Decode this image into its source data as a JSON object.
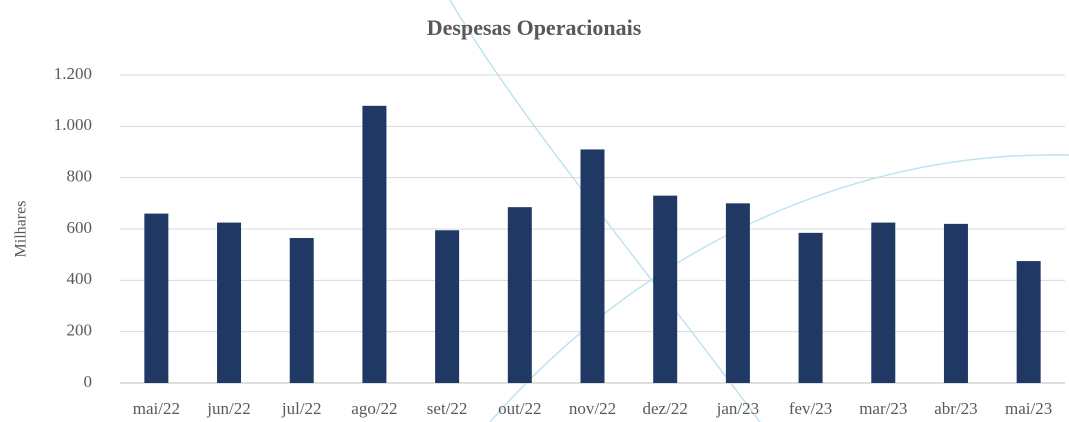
{
  "chart_data": {
    "type": "bar",
    "title": "Despesas Operacionais",
    "y_label": "Milhares",
    "categories": [
      "mai/22",
      "jun/22",
      "jul/22",
      "ago/22",
      "set/22",
      "out/22",
      "nov/22",
      "dez/22",
      "jan/23",
      "fev/23",
      "mar/23",
      "abr/23",
      "mai/23"
    ],
    "values": [
      660,
      625,
      565,
      1080,
      595,
      685,
      910,
      730,
      700,
      585,
      625,
      620,
      475
    ],
    "color": "#1f3864",
    "ylim": [
      0,
      1200
    ],
    "yticks": [
      0,
      200,
      400,
      600,
      800,
      {
        "value": 1000,
        "label": "1.000"
      },
      {
        "value": 1200,
        "label": "1.200"
      }
    ],
    "grid": true
  }
}
